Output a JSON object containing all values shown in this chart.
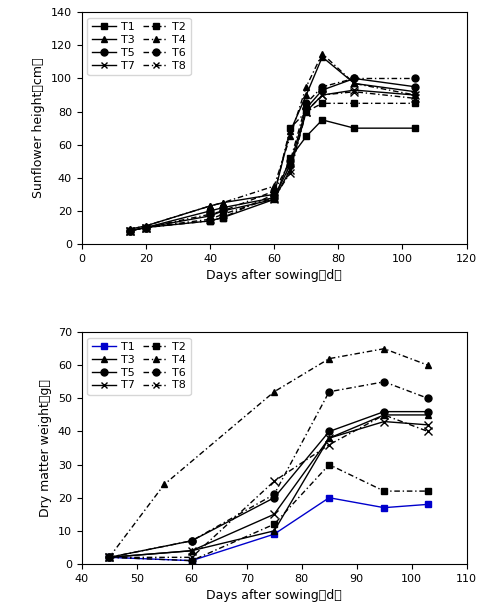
{
  "top_chart": {
    "xlabel": "Days after sowing（d）",
    "ylabel": "Sunflower height（cm）",
    "xlim": [
      0,
      120
    ],
    "ylim": [
      0,
      140
    ],
    "xticks": [
      0,
      20,
      40,
      60,
      80,
      100,
      120
    ],
    "yticks": [
      0,
      20,
      40,
      60,
      80,
      100,
      120,
      140
    ],
    "series": {
      "T1": {
        "x": [
          15,
          20,
          40,
          44,
          60,
          65,
          70,
          75,
          85,
          104
        ],
        "y": [
          8,
          10,
          14,
          16,
          27,
          52,
          65,
          75,
          70,
          70
        ],
        "linestyle": "solid",
        "marker": "s",
        "color": "black",
        "dashes": null
      },
      "T2": {
        "x": [
          15,
          20,
          40,
          44,
          60,
          65,
          70,
          75,
          85,
          104
        ],
        "y": [
          8,
          10,
          14,
          16,
          30,
          70,
          80,
          85,
          85,
          85
        ],
        "linestyle": "dashed",
        "marker": "s",
        "color": "black",
        "dashes": [
          4,
          2,
          1,
          2
        ]
      },
      "T3": {
        "x": [
          15,
          20,
          40,
          44,
          60,
          65,
          70,
          75,
          85,
          104
        ],
        "y": [
          9,
          11,
          23,
          25,
          30,
          68,
          90,
          113,
          97,
          92
        ],
        "linestyle": "solid",
        "marker": "^",
        "color": "black",
        "dashes": null
      },
      "T4": {
        "x": [
          15,
          20,
          40,
          44,
          60,
          65,
          70,
          75,
          85,
          104
        ],
        "y": [
          9,
          11,
          23,
          25,
          35,
          65,
          95,
          115,
          97,
          90
        ],
        "linestyle": "dashed",
        "marker": "^",
        "color": "black",
        "dashes": [
          4,
          2,
          1,
          2
        ]
      },
      "T5": {
        "x": [
          15,
          20,
          40,
          44,
          60,
          65,
          70,
          75,
          85,
          104
        ],
        "y": [
          8,
          10,
          20,
          22,
          28,
          48,
          82,
          93,
          100,
          95
        ],
        "linestyle": "solid",
        "marker": "o",
        "color": "black",
        "dashes": null
      },
      "T6": {
        "x": [
          15,
          20,
          40,
          44,
          60,
          65,
          70,
          75,
          85,
          104
        ],
        "y": [
          8,
          10,
          18,
          20,
          32,
          50,
          85,
          95,
          100,
          100
        ],
        "linestyle": "dashed",
        "marker": "o",
        "color": "black",
        "dashes": [
          4,
          2,
          1,
          2
        ]
      },
      "T7": {
        "x": [
          15,
          20,
          40,
          44,
          60,
          65,
          70,
          75,
          85,
          104
        ],
        "y": [
          8,
          10,
          17,
          20,
          27,
          45,
          80,
          90,
          93,
          90
        ],
        "linestyle": "solid",
        "marker": "x",
        "color": "black",
        "dashes": null
      },
      "T8": {
        "x": [
          15,
          20,
          40,
          44,
          60,
          65,
          70,
          75,
          85,
          104
        ],
        "y": [
          8,
          10,
          15,
          18,
          28,
          43,
          80,
          90,
          92,
          88
        ],
        "linestyle": "dashed",
        "marker": "x",
        "color": "black",
        "dashes": [
          4,
          2,
          1,
          2
        ]
      }
    },
    "legend_order": [
      "T1",
      "T2",
      "T3",
      "T4",
      "T5",
      "T6",
      "T7",
      "T8"
    ]
  },
  "bottom_chart": {
    "xlabel": "Days after sowing（d）",
    "ylabel": "Dry matter weight（g）",
    "xlim": [
      40,
      110
    ],
    "ylim": [
      0,
      70
    ],
    "xticks": [
      40,
      50,
      60,
      70,
      80,
      90,
      100,
      110
    ],
    "yticks": [
      0,
      10,
      20,
      30,
      40,
      50,
      60,
      70
    ],
    "series": {
      "T1": {
        "x": [
          45,
          60,
          75,
          85,
          95,
          103
        ],
        "y": [
          2,
          1,
          9,
          20,
          17,
          18
        ],
        "linestyle": "solid",
        "marker": "s",
        "color": "#0000cc",
        "dashes": null
      },
      "T2": {
        "x": [
          45,
          60,
          75,
          85,
          95,
          103
        ],
        "y": [
          2,
          1,
          12,
          30,
          22,
          22
        ],
        "linestyle": "dashed",
        "marker": "s",
        "color": "black",
        "dashes": [
          4,
          2,
          1,
          2
        ]
      },
      "T3": {
        "x": [
          45,
          60,
          75,
          85,
          95,
          103
        ],
        "y": [
          2,
          4,
          10,
          38,
          45,
          45
        ],
        "linestyle": "solid",
        "marker": "^",
        "color": "black",
        "dashes": null
      },
      "T4": {
        "x": [
          45,
          55,
          75,
          85,
          95,
          103
        ],
        "y": [
          2,
          24,
          52,
          62,
          65,
          60
        ],
        "linestyle": "dashed",
        "marker": "^",
        "color": "black",
        "dashes": [
          4,
          2,
          1,
          2
        ]
      },
      "T5": {
        "x": [
          45,
          60,
          75,
          85,
          95,
          103
        ],
        "y": [
          2,
          7,
          20,
          40,
          46,
          46
        ],
        "linestyle": "solid",
        "marker": "o",
        "color": "black",
        "dashes": null
      },
      "T6": {
        "x": [
          45,
          60,
          75,
          85,
          95,
          103
        ],
        "y": [
          2,
          7,
          21,
          52,
          55,
          50
        ],
        "linestyle": "dashed",
        "marker": "o",
        "color": "black",
        "dashes": [
          4,
          2,
          1,
          2
        ]
      },
      "T7": {
        "x": [
          45,
          60,
          75,
          85,
          95,
          103
        ],
        "y": [
          2,
          4,
          15,
          38,
          43,
          42
        ],
        "linestyle": "solid",
        "marker": "x",
        "color": "black",
        "dashes": null
      },
      "T8": {
        "x": [
          45,
          60,
          75,
          85,
          95,
          103
        ],
        "y": [
          2,
          2,
          25,
          36,
          45,
          40
        ],
        "linestyle": "dashed",
        "marker": "x",
        "color": "black",
        "dashes": [
          4,
          2,
          1,
          2
        ]
      }
    },
    "legend_order": [
      "T1",
      "T2",
      "T3",
      "T4",
      "T5",
      "T6",
      "T7",
      "T8"
    ]
  }
}
